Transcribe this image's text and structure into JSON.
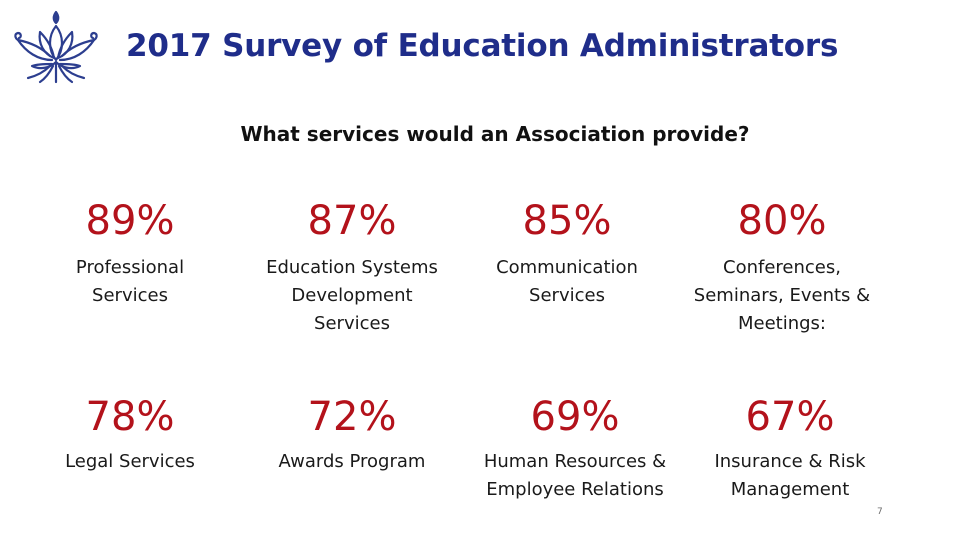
{
  "header": {
    "title": "2017 Survey of Education Administrators",
    "subtitle": "What services would an Association provide?"
  },
  "brand": {
    "logo_icon": "lotus-logo-icon",
    "logo_color": "#2c3e8f"
  },
  "colors": {
    "title": "#1f2d8a",
    "percent": "#b3121b"
  },
  "stats": [
    {
      "percent": "89%",
      "label": "Professional\nServices"
    },
    {
      "percent": "87%",
      "label": "Education Systems\nDevelopment\nServices"
    },
    {
      "percent": "85%",
      "label": "Communication\nServices"
    },
    {
      "percent": "80%",
      "label": "Conferences,\nSeminars, Events &\nMeetings:"
    },
    {
      "percent": "78%",
      "label": "Legal Services"
    },
    {
      "percent": "72%",
      "label": "Awards Program"
    },
    {
      "percent": "69%",
      "label": "Human Resources &\nEmployee Relations"
    },
    {
      "percent": "67%",
      "label": "Insurance & Risk\nManagement"
    }
  ],
  "footer": {
    "page_number": "7"
  }
}
